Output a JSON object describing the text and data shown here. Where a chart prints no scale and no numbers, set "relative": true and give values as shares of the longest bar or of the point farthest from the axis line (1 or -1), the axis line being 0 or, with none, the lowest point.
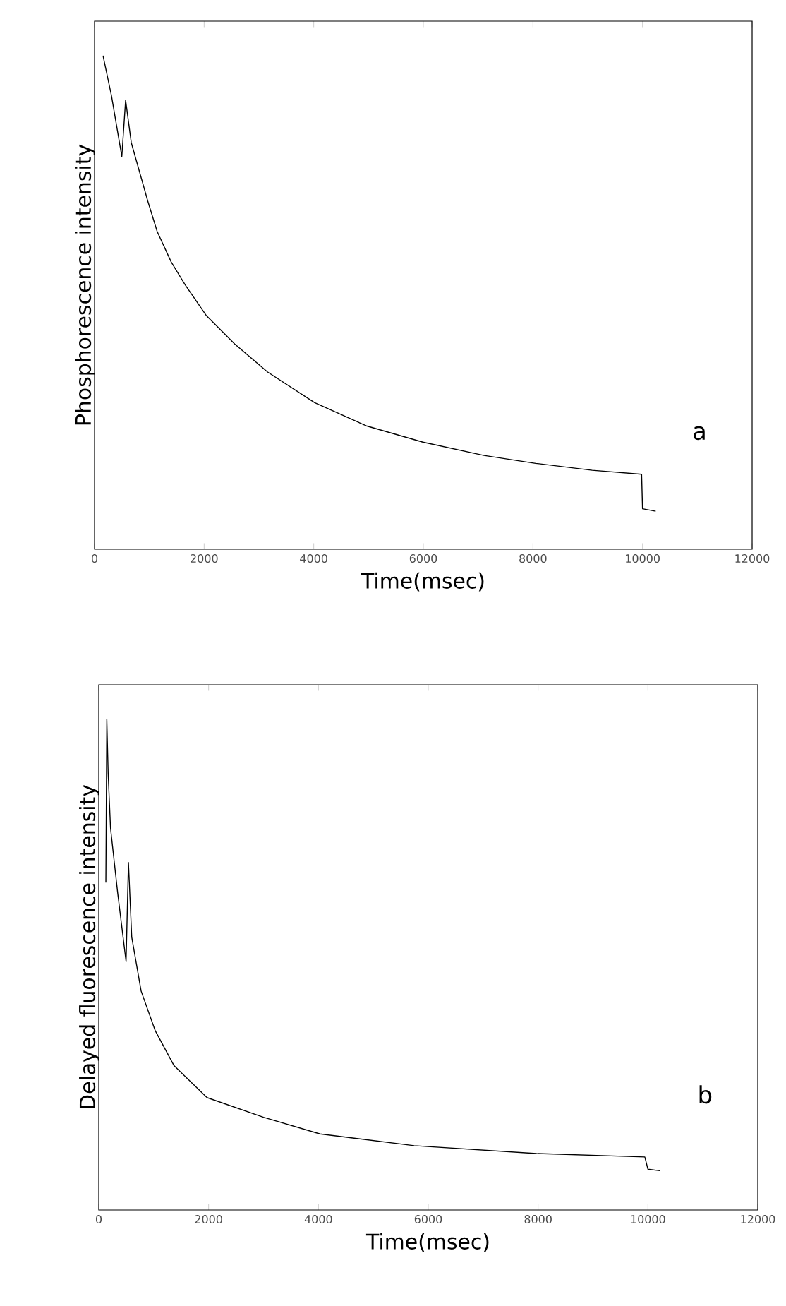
{
  "chart_data": [
    {
      "type": "line",
      "relative": true,
      "xlabel": "Time(msec)",
      "ylabel": "Phosphorescence intensity",
      "annotations": [
        "a"
      ],
      "xlim": [
        0,
        12000
      ],
      "xticks": [
        0,
        2000,
        4000,
        6000,
        8000,
        10000,
        12000
      ],
      "series": [
        {
          "color": "#000000",
          "x": [
            155,
            309,
            498,
            567,
            670,
            970,
            1142,
            1399,
            1657,
            2043,
            2558,
            3159,
            4017,
            4961,
            5991,
            7107,
            8051,
            9082,
            9983,
            10000,
            10240
          ],
          "values": [
            1.0,
            0.919,
            0.796,
            0.91,
            0.824,
            0.706,
            0.644,
            0.582,
            0.535,
            0.473,
            0.416,
            0.359,
            0.297,
            0.25,
            0.217,
            0.19,
            0.174,
            0.16,
            0.152,
            0.082,
            0.077
          ]
        }
      ]
    },
    {
      "type": "line",
      "relative": true,
      "xlabel": "Time(msec)",
      "ylabel": "Delayed fluorescence intensity",
      "annotations": [
        "b"
      ],
      "xlim": [
        0,
        12000
      ],
      "xticks": [
        0,
        2000,
        4000,
        6000,
        8000,
        10000,
        12000
      ],
      "series": [
        {
          "color": "#000000",
          "x": [
            129,
            146,
            171,
            214,
            343,
            497,
            540,
            600,
            771,
            1029,
            1371,
            1971,
            3000,
            4029,
            5743,
            7971,
            9943,
            10000,
            10217
          ],
          "values": [
            0.667,
            1.0,
            0.889,
            0.778,
            0.647,
            0.506,
            0.708,
            0.556,
            0.446,
            0.365,
            0.294,
            0.229,
            0.189,
            0.155,
            0.131,
            0.115,
            0.108,
            0.083,
            0.08
          ]
        }
      ]
    }
  ]
}
